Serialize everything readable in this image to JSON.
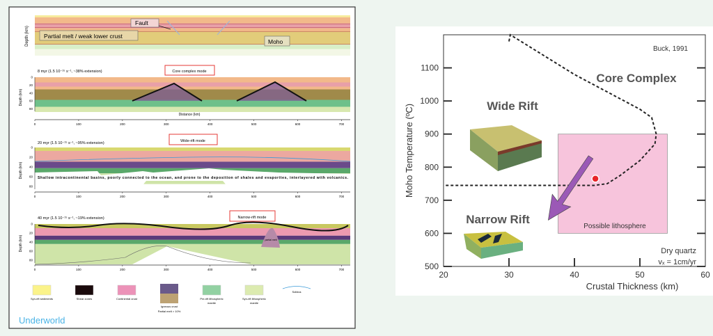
{
  "left_figure": {
    "panel1": {
      "ylabel": "Depth (km)",
      "labels": {
        "fault": "Fault",
        "partial_melt": "Partial melt / weak lower crust",
        "moho": "Moho"
      }
    },
    "panel2": {
      "title": "8 myr (1.5 10⁻¹⁵ s⁻¹, ~38% extension)",
      "mode": "Core complex mode",
      "xlabel": "Distance (km)",
      "ylabel": "Depth (km)"
    },
    "panel3": {
      "title": "20 myr (1.5 10⁻¹⁵ s⁻¹, ~95% extension)",
      "mode": "Wide-rift mode",
      "ylabel": "Depth (km)",
      "note": "Shallow intracontinental basins, poorly connected to the ocean, and prone to the deposition of shales and evaporites, interlayered with volcanics."
    },
    "panel4": {
      "title": "40 myr (1.5 10⁻¹⁵ s⁻¹, ~19% extension)",
      "mode": "Narrow-rift mode",
      "ylabel": "Depth (km)",
      "partial_melt_label": "partial melt"
    },
    "depth_ticks": [
      "0",
      "20",
      "40",
      "60",
      "80"
    ],
    "distance_ticks": [
      "0",
      "100",
      "200",
      "300",
      "400",
      "500",
      "600",
      "700"
    ],
    "legend": [
      {
        "label": "Syn-rift sediments",
        "color": "#fbf38a"
      },
      {
        "label": "Shear zones",
        "color": "#1a0a0c"
      },
      {
        "label": "Continental crust",
        "color": "#ec92b8"
      },
      {
        "label": "Igneous crust",
        "sublabel": "Partial melt > 10%",
        "color": "#6a5a8a",
        "color2": "#bda273"
      },
      {
        "label": "Pre-rift lithospheric mantle",
        "color": "#92d1a2"
      },
      {
        "label": "Syn-rift lithospheric mantle",
        "color": "#dcebb0"
      },
      {
        "label": "Solidus",
        "color": "#3a9ad8"
      }
    ],
    "brand": "Underworld",
    "brand_color": "#4ab3e6"
  },
  "chart_data": {
    "type": "line",
    "xlabel": "Crustal Thickness (km)",
    "ylabel": "Moho Temperature (ºC)",
    "xlim": [
      20,
      60
    ],
    "ylim": [
      500,
      1200
    ],
    "x_ticks": [
      20,
      30,
      40,
      50,
      60
    ],
    "y_ticks": [
      500,
      600,
      700,
      800,
      900,
      1000,
      1100
    ],
    "grid": false,
    "annotations": {
      "source": "Buck, 1991",
      "core_complex": "Core Complex",
      "wide_rift": "Wide Rift",
      "narrow_rift": "Narrow Rift",
      "possible_lithosphere": "Possible lithosphere",
      "condition1": "Dry quartz",
      "condition2": "vₓ = 1cm/yr"
    },
    "boundary_line": {
      "style": "dashed",
      "x": [
        30,
        30.2,
        40,
        50,
        51.8,
        52.5,
        52.3,
        50,
        47,
        45,
        43,
        38,
        20
      ],
      "y": [
        1180,
        1200,
        1080,
        975,
        950,
        900,
        870,
        820,
        775,
        750,
        745,
        745,
        745
      ]
    },
    "possible_lithosphere_box": {
      "x": [
        37.5,
        54.2
      ],
      "y": [
        600,
        900
      ],
      "color": "#f7c4dc"
    },
    "point": {
      "x": 43.2,
      "y": 765,
      "color": "#e8262a"
    },
    "arrow": {
      "from": [
        42.5,
        830
      ],
      "to": [
        36,
        640
      ],
      "color": "#9b59b6"
    }
  }
}
